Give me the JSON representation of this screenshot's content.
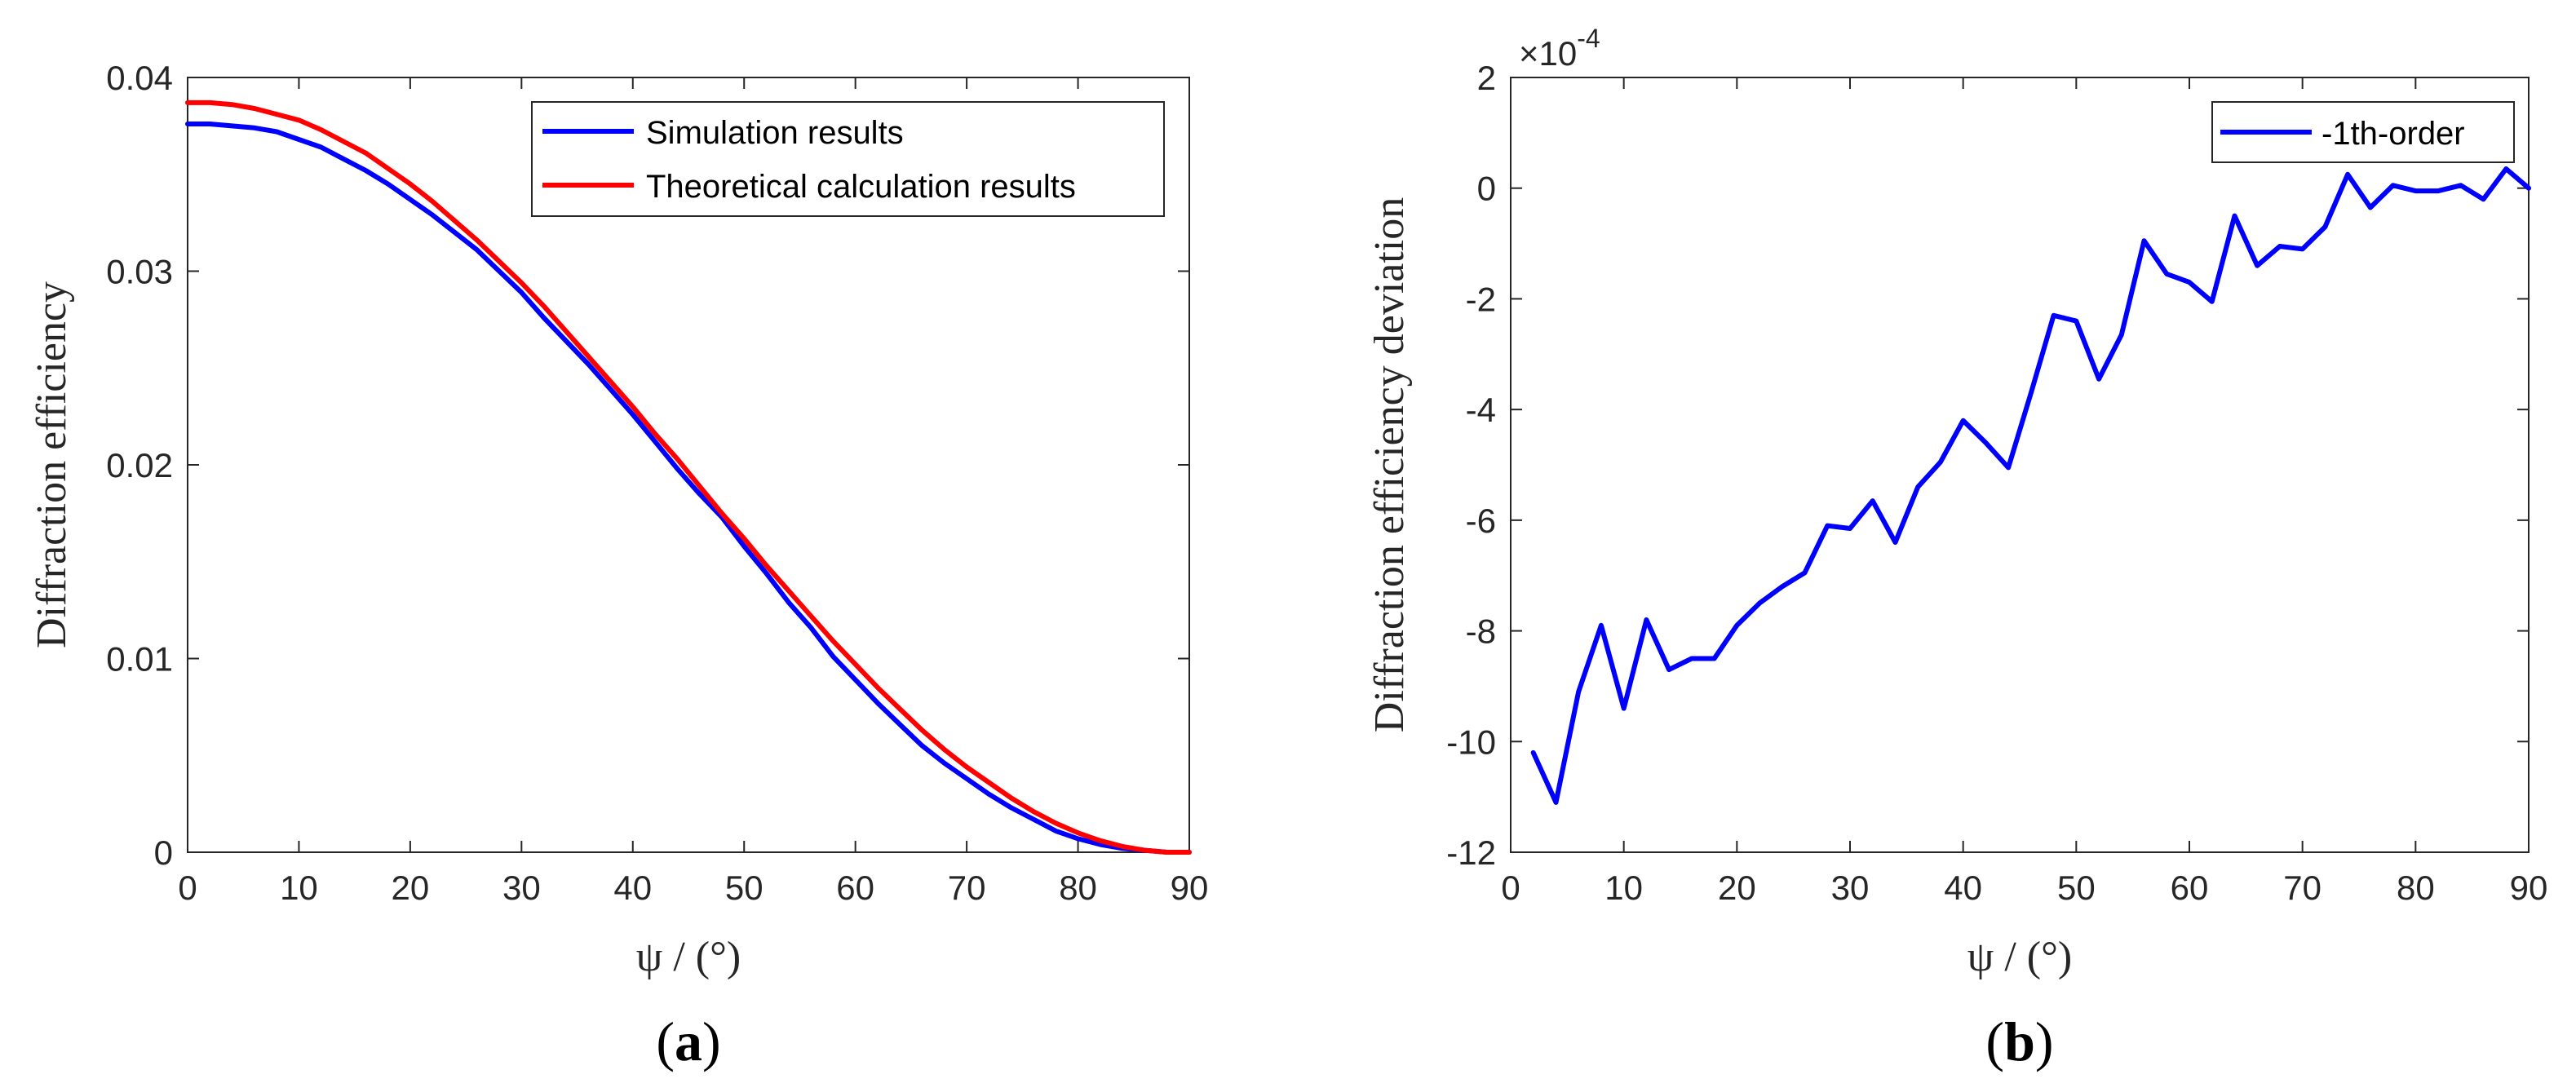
{
  "chart_data": [
    {
      "id": "a",
      "type": "line",
      "caption": "a",
      "xlabel": "ψ / (°)",
      "ylabel": "Diffraction efficiency",
      "xlim": [
        0,
        90
      ],
      "ylim": [
        0,
        0.04
      ],
      "xticks": [
        "0",
        "10",
        "20",
        "30",
        "40",
        "50",
        "60",
        "70",
        "80",
        "90"
      ],
      "yticks": [
        "0",
        "0.01",
        "0.02",
        "0.03",
        "0.04"
      ],
      "legend_position": "top-right",
      "series": [
        {
          "name": "Simulation results",
          "color": "#0000ff",
          "x": [
            0,
            2,
            4,
            6,
            8,
            10,
            12,
            14,
            16,
            18,
            20,
            22,
            24,
            26,
            28,
            30,
            32,
            34,
            36,
            38,
            40,
            42,
            44,
            46,
            48,
            50,
            52,
            54,
            56,
            58,
            60,
            62,
            64,
            66,
            68,
            70,
            72,
            74,
            76,
            78,
            80,
            82,
            84,
            86,
            88,
            90
          ],
          "values": [
            0.0376,
            0.0376,
            0.0375,
            0.0374,
            0.0372,
            0.0368,
            0.0364,
            0.0358,
            0.0352,
            0.0345,
            0.0337,
            0.0329,
            0.032,
            0.0311,
            0.03,
            0.0289,
            0.0276,
            0.0264,
            0.0252,
            0.0239,
            0.0226,
            0.0212,
            0.0198,
            0.0185,
            0.0173,
            0.0158,
            0.0144,
            0.0129,
            0.0116,
            0.0101,
            0.0089,
            0.0077,
            0.0066,
            0.0055,
            0.0046,
            0.0038,
            0.003,
            0.0023,
            0.0017,
            0.0011,
            0.0007,
            0.0004,
            0.0002,
            0.0001,
            0.0,
            0.0
          ]
        },
        {
          "name": "Theoretical calculation results",
          "color": "#ff0000",
          "x": [
            0,
            2,
            4,
            6,
            8,
            10,
            12,
            14,
            16,
            18,
            20,
            22,
            24,
            26,
            28,
            30,
            32,
            34,
            36,
            38,
            40,
            42,
            44,
            46,
            48,
            50,
            52,
            54,
            56,
            58,
            60,
            62,
            64,
            66,
            68,
            70,
            72,
            74,
            76,
            78,
            80,
            82,
            84,
            86,
            88,
            90
          ],
          "values": [
            0.0387,
            0.0387,
            0.0386,
            0.0384,
            0.0381,
            0.0378,
            0.0373,
            0.0367,
            0.0361,
            0.0353,
            0.0345,
            0.0336,
            0.0326,
            0.0316,
            0.0305,
            0.0294,
            0.0282,
            0.0269,
            0.0256,
            0.0243,
            0.023,
            0.0216,
            0.0203,
            0.0189,
            0.0175,
            0.0162,
            0.0148,
            0.0135,
            0.0122,
            0.0109,
            0.0097,
            0.0085,
            0.0074,
            0.0063,
            0.0053,
            0.0044,
            0.0036,
            0.0028,
            0.0021,
            0.0015,
            0.001,
            0.0006,
            0.0003,
            0.0001,
            0.0,
            0.0
          ]
        }
      ]
    },
    {
      "id": "b",
      "type": "line",
      "caption": "b",
      "xlabel": "ψ / (°)",
      "ylabel": "Diffraction efficiency deviation",
      "xlim": [
        0,
        90
      ],
      "ylim": [
        -12,
        2
      ],
      "scale_base": "×10",
      "scale_exponent": "-4",
      "xticks": [
        "0",
        "10",
        "20",
        "30",
        "40",
        "50",
        "60",
        "70",
        "80",
        "90"
      ],
      "yticks": [
        "-12",
        "-10",
        "-8",
        "-6",
        "-4",
        "-2",
        "0",
        "2"
      ],
      "legend_position": "top-right",
      "series": [
        {
          "name": "-1th-order",
          "color": "#0000ff",
          "x": [
            2,
            4,
            6,
            8,
            10,
            12,
            14,
            16,
            18,
            20,
            22,
            24,
            26,
            28,
            30,
            32,
            34,
            36,
            38,
            40,
            42,
            44,
            46,
            48,
            50,
            52,
            54,
            56,
            58,
            60,
            62,
            64,
            66,
            68,
            70,
            72,
            74,
            76,
            78,
            80,
            82,
            84,
            86,
            88,
            90
          ],
          "values": [
            -10.2,
            -11.1,
            -9.1,
            -7.9,
            -9.4,
            -7.8,
            -8.7,
            -8.5,
            -8.5,
            -7.9,
            -7.5,
            -7.2,
            -6.95,
            -6.1,
            -6.15,
            -5.65,
            -6.4,
            -5.4,
            -4.95,
            -4.2,
            -4.6,
            -5.05,
            -3.7,
            -2.3,
            -2.4,
            -3.45,
            -2.65,
            -0.95,
            -1.55,
            -1.7,
            -2.05,
            -0.5,
            -1.4,
            -1.05,
            -1.1,
            -0.7,
            0.25,
            -0.35,
            0.05,
            -0.05,
            -0.05,
            0.05,
            -0.2,
            0.35,
            0.0
          ]
        }
      ]
    }
  ]
}
